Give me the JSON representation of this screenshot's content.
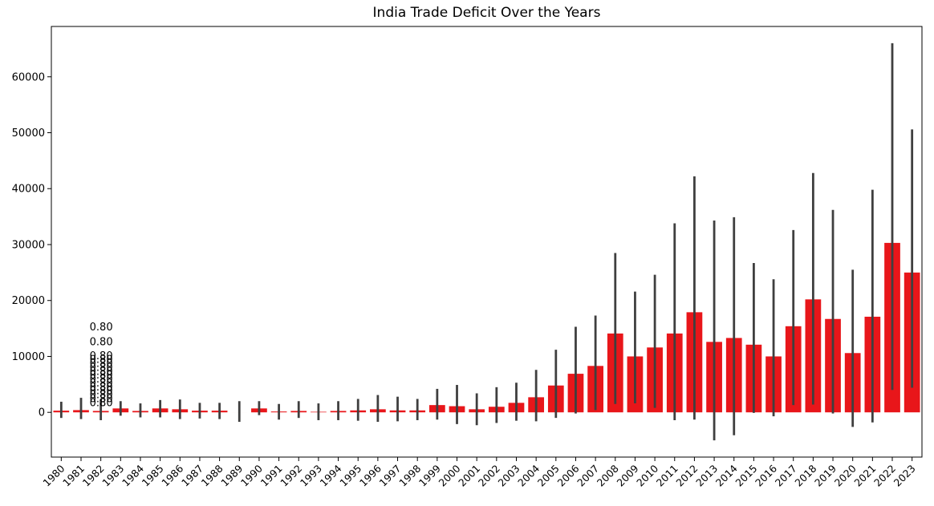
{
  "chart_data": {
    "type": "bar",
    "title": "India Trade Deficit Over the Years",
    "xlabel": "",
    "ylabel": "",
    "ylim": [
      -8000,
      69000
    ],
    "yticks": [
      0,
      10000,
      20000,
      30000,
      40000,
      50000,
      60000
    ],
    "ytick_labels": [
      "0",
      "10000",
      "20000",
      "30000",
      "40000",
      "50000",
      "60000"
    ],
    "bar_color": "#e8161a",
    "errorbar_color": "#3f3f3f",
    "categories": [
      "1980",
      "1981",
      "1982",
      "1983",
      "1984",
      "1985",
      "1986",
      "1987",
      "1988",
      "1989",
      "1990",
      "1991",
      "1992",
      "1993",
      "1994",
      "1995",
      "1996",
      "1997",
      "1998",
      "1999",
      "2000",
      "2001",
      "2002",
      "2003",
      "2004",
      "2005",
      "2006",
      "2007",
      "2008",
      "2009",
      "2010",
      "2011",
      "2012",
      "2013",
      "2014",
      "2015",
      "2016",
      "2017",
      "2018",
      "2019",
      "2020",
      "2021",
      "2022",
      "2023"
    ],
    "values": [
      300,
      400,
      250,
      700,
      250,
      700,
      550,
      300,
      300,
      0,
      700,
      150,
      250,
      100,
      250,
      350,
      550,
      350,
      350,
      1300,
      1100,
      550,
      1000,
      1700,
      2700,
      4800,
      6900,
      8300,
      14100,
      10000,
      11600,
      14100,
      17900,
      12600,
      13300,
      12100,
      10000,
      15400,
      20200,
      16700,
      10600,
      17100,
      30300,
      25000
    ],
    "ci_low": [
      -1000,
      -1200,
      -1400,
      -600,
      -900,
      -900,
      -1200,
      -1100,
      -1200,
      -1700,
      -500,
      -1300,
      -1000,
      -1400,
      -1400,
      -1500,
      -1700,
      -1600,
      -1400,
      -1300,
      -2100,
      -2300,
      -1900,
      -1500,
      -1600,
      -1000,
      -200,
      400,
      1500,
      1600,
      800,
      -1400,
      -1300,
      -5000,
      -4100,
      -100,
      -700,
      1300,
      1400,
      -200,
      -2600,
      -1800,
      4000,
      4400
    ],
    "ci_high": [
      1900,
      2600,
      2300,
      2000,
      1600,
      2200,
      2300,
      1700,
      1700,
      2000,
      2000,
      1500,
      2000,
      1600,
      2000,
      2400,
      3100,
      2800,
      2400,
      4200,
      4900,
      3400,
      4500,
      5300,
      7600,
      11200,
      15300,
      17300,
      28500,
      21600,
      24600,
      33800,
      42200,
      34300,
      34900,
      26700,
      23800,
      32600,
      42800,
      36200,
      25500,
      39800,
      66000,
      50600
    ],
    "annotations": {
      "category": "1982",
      "labels": [
        "0.80",
        "0.80",
        "0.80",
        "0.80",
        "0.80",
        "0.80",
        "0.80",
        "0.80",
        "0.80",
        "0.80",
        "0.80",
        "0.80",
        "0.80",
        "0.80",
        "0.80"
      ],
      "y": [
        15200,
        12600,
        10100,
        9400,
        8700,
        8000,
        7300,
        6600,
        5900,
        5200,
        4500,
        3800,
        3100,
        2400,
        1700
      ]
    }
  }
}
